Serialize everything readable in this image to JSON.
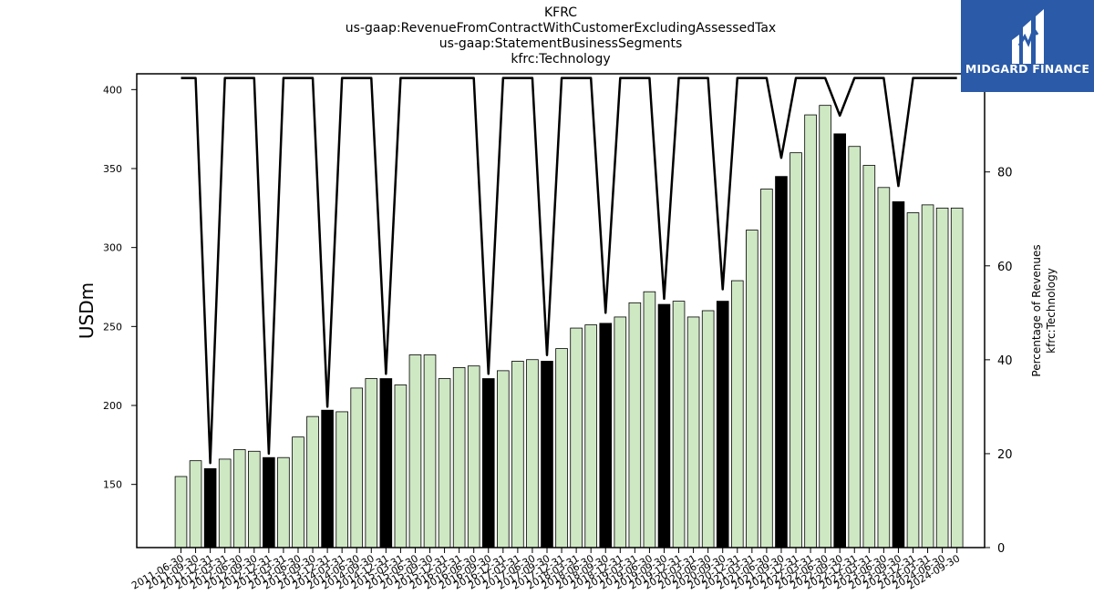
{
  "titles": [
    "KFRC",
    "us-gaap:RevenueFromContractWithCustomerExcludingAssessedTax",
    "us-gaap:StatementBusinessSegments",
    "kfrc:Technology"
  ],
  "logo": {
    "text": "MIDGARD FINANCE",
    "color": "#2a5aa8"
  },
  "chart_data": {
    "type": "bar",
    "title": "KFRC",
    "ylabel": "USDm",
    "y2label": [
      "Percentage of Revenues",
      "kfrc:Technology"
    ],
    "ylim": [
      110,
      410
    ],
    "y2lim": [
      0,
      100.9
    ],
    "yticks": [
      150,
      200,
      250,
      300,
      350,
      400
    ],
    "y2ticks": [
      0,
      20,
      40,
      60,
      80,
      100
    ],
    "colors": {
      "bar": "#cfe8c4",
      "bar_highlight": "#000000",
      "edge": "#000000",
      "line": "#000000"
    },
    "categories": [
      "2011-06-30",
      "2011-09-30",
      "2011-12-31",
      "2012-03-31",
      "2012-06-30",
      "2012-09-30",
      "2012-12-31",
      "2013-03-31",
      "2013-06-30",
      "2013-09-30",
      "2013-12-31",
      "2014-03-31",
      "2014-06-30",
      "2014-09-30",
      "2014-12-31",
      "2015-03-31",
      "2015-06-30",
      "2015-09-30",
      "2015-12-31",
      "2016-03-31",
      "2016-06-30",
      "2016-09-30",
      "2016-12-31",
      "2017-03-31",
      "2017-06-30",
      "2017-09-30",
      "2017-12-31",
      "2018-03-31",
      "2018-06-30",
      "2018-09-30",
      "2018-12-31",
      "2019-03-31",
      "2019-06-30",
      "2019-09-30",
      "2019-12-31",
      "2020-03-31",
      "2020-06-30",
      "2020-09-30",
      "2020-12-31",
      "2021-03-31",
      "2021-06-30",
      "2021-09-30",
      "2021-12-31",
      "2022-03-31",
      "2022-06-30",
      "2022-09-30",
      "2022-12-31",
      "2023-03-31",
      "2023-06-30",
      "2023-09-30",
      "2023-12-31",
      "2024-03-31",
      "2024-06-30",
      "2024-09-30"
    ],
    "series": [
      {
        "values": [
          155,
          165,
          160,
          166,
          172,
          171,
          167,
          167,
          180,
          193,
          197,
          196,
          211,
          217,
          217,
          213,
          232,
          232,
          217,
          224,
          225,
          217,
          222,
          228,
          229,
          228,
          236,
          249,
          251,
          252,
          256,
          265,
          272,
          264,
          266,
          256,
          260,
          266,
          279,
          311,
          337,
          345,
          360,
          384,
          390,
          372,
          364,
          352,
          338,
          329,
          322,
          327,
          325,
          325
        ],
        "highlight": [
          false,
          false,
          true,
          false,
          false,
          false,
          true,
          false,
          false,
          false,
          true,
          false,
          false,
          false,
          true,
          false,
          false,
          false,
          false,
          false,
          false,
          true,
          false,
          false,
          false,
          true,
          false,
          false,
          false,
          true,
          false,
          false,
          false,
          true,
          false,
          false,
          false,
          true,
          false,
          false,
          false,
          true,
          false,
          false,
          false,
          true,
          false,
          false,
          false,
          true,
          false,
          false,
          false,
          false
        ]
      },
      {
        "axis": "right",
        "values": [
          100,
          100,
          18,
          100,
          100,
          100,
          20,
          100,
          100,
          100,
          30,
          100,
          100,
          100,
          37,
          100,
          100,
          100,
          100,
          100,
          100,
          37,
          100,
          100,
          100,
          41,
          100,
          100,
          100,
          50,
          100,
          100,
          100,
          53,
          100,
          100,
          100,
          55,
          100,
          100,
          100,
          83,
          100,
          100,
          100,
          92,
          100,
          100,
          100,
          77,
          100,
          100,
          100,
          100
        ]
      }
    ]
  }
}
